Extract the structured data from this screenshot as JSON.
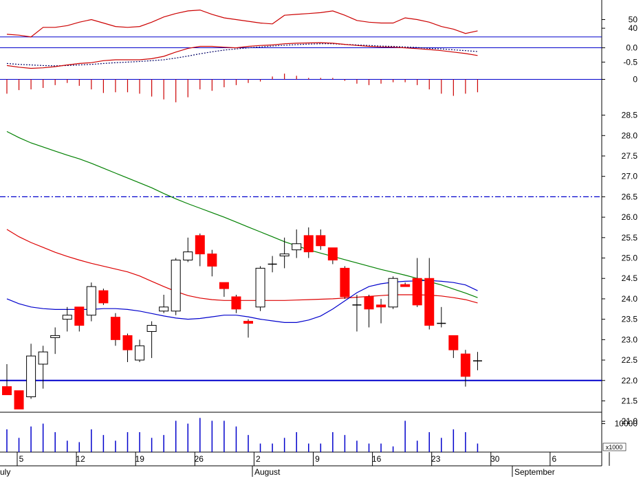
{
  "chart_data": {
    "type": "candlestick",
    "x_axis": {
      "day_labels": [
        "5",
        "12",
        "19",
        "26",
        "2",
        "9",
        "16",
        "23",
        "30",
        "6"
      ],
      "month_labels": [
        "uly",
        "August",
        "September"
      ]
    },
    "rsi_panel": {
      "ticks": [
        "50",
        "40"
      ],
      "ylim": [
        25,
        75
      ],
      "reference_level": 30,
      "values": [
        33,
        32,
        30,
        41,
        41,
        43,
        47,
        50,
        46,
        42,
        41,
        42,
        47,
        53,
        57,
        60,
        61,
        56,
        52,
        50,
        48,
        46,
        45,
        55,
        56,
        57,
        58,
        60,
        55,
        49,
        47,
        46,
        46,
        52,
        50,
        47,
        42,
        39,
        34,
        37
      ]
    },
    "macd_panel": {
      "ticks": [
        "0.0",
        "-0.5"
      ],
      "ylim": [
        -0.9,
        0.35
      ],
      "zero_line": 0,
      "macd": [
        -0.62,
        -0.68,
        -0.72,
        -0.7,
        -0.66,
        -0.6,
        -0.55,
        -0.52,
        -0.45,
        -0.42,
        -0.42,
        -0.42,
        -0.38,
        -0.3,
        -0.15,
        -0.02,
        0.05,
        0.05,
        0.02,
        0.0,
        0.05,
        0.08,
        0.1,
        0.14,
        0.16,
        0.17,
        0.18,
        0.16,
        0.12,
        0.08,
        0.05,
        0.03,
        0.02,
        0.0,
        -0.03,
        -0.06,
        -0.1,
        -0.15,
        -0.2,
        -0.27
      ],
      "signal": [
        -0.55,
        -0.58,
        -0.6,
        -0.62,
        -0.63,
        -0.62,
        -0.6,
        -0.58,
        -0.55,
        -0.52,
        -0.5,
        -0.48,
        -0.45,
        -0.42,
        -0.36,
        -0.29,
        -0.21,
        -0.14,
        -0.08,
        -0.04,
        0.0,
        0.03,
        0.06,
        0.09,
        0.11,
        0.13,
        0.14,
        0.14,
        0.12,
        0.1,
        0.08,
        0.06,
        0.05,
        0.03,
        0.01,
        -0.02,
        -0.04,
        -0.07,
        -0.1,
        -0.13
      ]
    },
    "histogram_panel": {
      "ticks": [
        "0"
      ],
      "ylim": [
        -0.35,
        0.12
      ],
      "values": [
        -0.2,
        -0.15,
        -0.14,
        -0.12,
        -0.08,
        -0.05,
        -0.09,
        -0.14,
        -0.19,
        -0.18,
        -0.18,
        -0.2,
        -0.24,
        -0.28,
        -0.32,
        -0.25,
        -0.14,
        -0.16,
        -0.11,
        -0.08,
        -0.05,
        -0.03,
        0.04,
        0.08,
        0.05,
        0.02,
        0.02,
        0.02,
        -0.02,
        -0.06,
        -0.08,
        -0.06,
        -0.04,
        -0.04,
        -0.08,
        -0.14,
        -0.2,
        -0.23,
        -0.2,
        -0.18
      ]
    },
    "price_panel": {
      "ticks": [
        "28.5",
        "28.0",
        "27.5",
        "27.0",
        "26.5",
        "26.0",
        "25.5",
        "25.0",
        "24.5",
        "24.0",
        "23.5",
        "23.0",
        "22.5",
        "22.0",
        "21.5",
        "21.0"
      ],
      "ylim": [
        20.7,
        29.2
      ],
      "resistance_level": 26.5,
      "support_level": 22.0,
      "candles": [
        {
          "o": 21.85,
          "h": 22.4,
          "l": 21.65,
          "c": 21.65
        },
        {
          "o": 21.75,
          "h": 21.75,
          "l": 21.3,
          "c": 21.3
        },
        {
          "o": 21.6,
          "h": 22.9,
          "l": 21.55,
          "c": 22.6
        },
        {
          "o": 22.4,
          "h": 22.85,
          "l": 21.8,
          "c": 22.7
        },
        {
          "o": 23.05,
          "h": 23.3,
          "l": 22.65,
          "c": 23.1
        },
        {
          "o": 23.5,
          "h": 23.8,
          "l": 23.2,
          "c": 23.6
        },
        {
          "o": 23.8,
          "h": 23.8,
          "l": 23.2,
          "c": 23.35
        },
        {
          "o": 23.6,
          "h": 24.4,
          "l": 23.45,
          "c": 24.3
        },
        {
          "o": 24.2,
          "h": 24.25,
          "l": 23.85,
          "c": 23.9
        },
        {
          "o": 23.55,
          "h": 23.65,
          "l": 22.85,
          "c": 23.0
        },
        {
          "o": 23.1,
          "h": 23.15,
          "l": 22.45,
          "c": 22.75
        },
        {
          "o": 22.5,
          "h": 23.0,
          "l": 22.45,
          "c": 22.85
        },
        {
          "o": 23.2,
          "h": 23.45,
          "l": 22.55,
          "c": 23.35
        },
        {
          "o": 23.7,
          "h": 24.1,
          "l": 23.65,
          "c": 23.8
        },
        {
          "o": 23.7,
          "h": 25.0,
          "l": 23.6,
          "c": 24.95
        },
        {
          "o": 24.95,
          "h": 25.5,
          "l": 24.9,
          "c": 25.15
        },
        {
          "o": 25.55,
          "h": 25.6,
          "l": 24.8,
          "c": 25.1
        },
        {
          "o": 25.1,
          "h": 25.2,
          "l": 24.55,
          "c": 24.8
        },
        {
          "o": 24.4,
          "h": 24.4,
          "l": 24.05,
          "c": 24.25
        },
        {
          "o": 24.05,
          "h": 24.1,
          "l": 23.65,
          "c": 23.75
        },
        {
          "o": 23.45,
          "h": 23.5,
          "l": 23.05,
          "c": 23.4
        },
        {
          "o": 23.8,
          "h": 24.8,
          "l": 23.7,
          "c": 24.75
        },
        {
          "o": 24.85,
          "h": 25.05,
          "l": 24.65,
          "c": 24.85
        },
        {
          "o": 25.05,
          "h": 25.5,
          "l": 24.75,
          "c": 25.1
        },
        {
          "o": 25.2,
          "h": 25.7,
          "l": 25.0,
          "c": 25.35
        },
        {
          "o": 25.55,
          "h": 25.75,
          "l": 25.0,
          "c": 25.15
        },
        {
          "o": 25.55,
          "h": 25.7,
          "l": 25.2,
          "c": 25.3
        },
        {
          "o": 25.25,
          "h": 25.25,
          "l": 24.85,
          "c": 24.95
        },
        {
          "o": 24.75,
          "h": 24.8,
          "l": 24.0,
          "c": 24.05
        },
        {
          "o": 23.85,
          "h": 24.1,
          "l": 23.2,
          "c": 23.85
        },
        {
          "o": 24.05,
          "h": 24.1,
          "l": 23.3,
          "c": 23.75
        },
        {
          "o": 23.85,
          "h": 24.0,
          "l": 23.4,
          "c": 23.8
        },
        {
          "o": 23.8,
          "h": 24.55,
          "l": 23.75,
          "c": 24.5
        },
        {
          "o": 24.35,
          "h": 24.4,
          "l": 24.3,
          "c": 24.3
        },
        {
          "o": 24.5,
          "h": 25.0,
          "l": 23.8,
          "c": 23.85
        },
        {
          "o": 24.5,
          "h": 25.0,
          "l": 23.25,
          "c": 23.35
        },
        {
          "o": 23.4,
          "h": 23.8,
          "l": 23.3,
          "c": 23.4
        },
        {
          "o": 23.1,
          "h": 23.1,
          "l": 22.55,
          "c": 22.75
        },
        {
          "o": 22.65,
          "h": 22.75,
          "l": 21.85,
          "c": 22.1
        },
        {
          "o": 22.48,
          "h": 22.7,
          "l": 22.25,
          "c": 22.48
        }
      ],
      "ma_green": [
        28.1,
        27.95,
        27.82,
        27.72,
        27.62,
        27.52,
        27.43,
        27.32,
        27.2,
        27.08,
        26.96,
        26.84,
        26.72,
        26.58,
        26.45,
        26.33,
        26.22,
        26.11,
        26.0,
        25.88,
        25.76,
        25.64,
        25.52,
        25.4,
        25.3,
        25.2,
        25.12,
        25.04,
        24.96,
        24.88,
        24.8,
        24.72,
        24.65,
        24.58,
        24.5,
        24.42,
        24.34,
        24.24,
        24.14,
        24.03
      ],
      "ma_red": [
        25.7,
        25.52,
        25.38,
        25.26,
        25.14,
        25.04,
        24.95,
        24.87,
        24.8,
        24.73,
        24.66,
        24.56,
        24.43,
        24.3,
        24.18,
        24.08,
        24.02,
        23.98,
        23.96,
        23.96,
        23.96,
        23.96,
        23.96,
        23.96,
        23.97,
        23.98,
        23.99,
        24.0,
        24.02,
        24.04,
        24.06,
        24.08,
        24.1,
        24.1,
        24.1,
        24.09,
        24.07,
        24.03,
        23.98,
        23.9
      ],
      "ma_blue": [
        24.0,
        23.88,
        23.8,
        23.76,
        23.74,
        23.74,
        23.74,
        23.74,
        23.76,
        23.76,
        23.74,
        23.7,
        23.64,
        23.58,
        23.53,
        23.5,
        23.52,
        23.56,
        23.6,
        23.6,
        23.56,
        23.5,
        23.46,
        23.42,
        23.42,
        23.48,
        23.58,
        23.75,
        23.95,
        24.15,
        24.3,
        24.37,
        24.41,
        24.43,
        24.44,
        24.45,
        24.43,
        24.4,
        24.34,
        24.2
      ]
    },
    "volume_panel": {
      "ticks": [
        "10000"
      ],
      "unit_label": "x1000",
      "ylim": [
        0,
        14000
      ],
      "values": [
        8000,
        5000,
        9000,
        10000,
        7000,
        4000,
        3500,
        8000,
        6000,
        4000,
        7000,
        7000,
        5000,
        6000,
        11000,
        10000,
        12000,
        11000,
        11000,
        9000,
        6000,
        3000,
        3000,
        5000,
        7000,
        3000,
        3000,
        7000,
        6000,
        4000,
        3000,
        3000,
        2000,
        11000,
        4000,
        7000,
        5000,
        8000,
        7000,
        3000
      ]
    },
    "colors": {
      "rsi": "#cc0000",
      "macd": "#cc0000",
      "signal": "#000066",
      "histogram": "#cc0000",
      "bear_candle": "#ff0000",
      "bull_candle": "#ffffff",
      "ma_green": "#008000",
      "ma_red": "#dd0000",
      "ma_blue": "#0000cc",
      "reference_lines": "#0000cc",
      "volume": "#0000cc"
    }
  }
}
